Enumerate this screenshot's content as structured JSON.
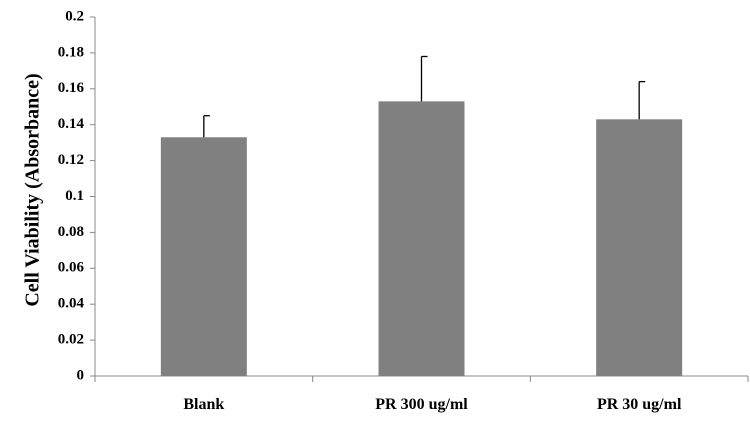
{
  "chart_data": {
    "type": "bar",
    "title": "",
    "xlabel": "",
    "ylabel": "Cell Viability (Absorbance)",
    "categories": [
      "Blank",
      "PR 300 ug/ml",
      "PR 30 ug/ml"
    ],
    "series": [
      {
        "values": [
          0.133,
          0.153,
          0.143
        ],
        "error": [
          0.012,
          0.025,
          0.021
        ]
      }
    ],
    "ylim": [
      0,
      0.2
    ],
    "yticks": [
      0,
      0.02,
      0.04,
      0.06,
      0.08,
      0.1,
      0.12,
      0.14,
      0.16,
      0.18,
      0.2
    ],
    "ytick_labels": [
      "0",
      "0.02",
      "0.04",
      "0.06",
      "0.08",
      "0.1",
      "0.12",
      "0.14",
      "0.16",
      "0.18",
      "0.2"
    ],
    "grid": false,
    "legend": "none",
    "bar_color": "#808080",
    "axis_color": "#888888",
    "text_color": "#000000"
  }
}
